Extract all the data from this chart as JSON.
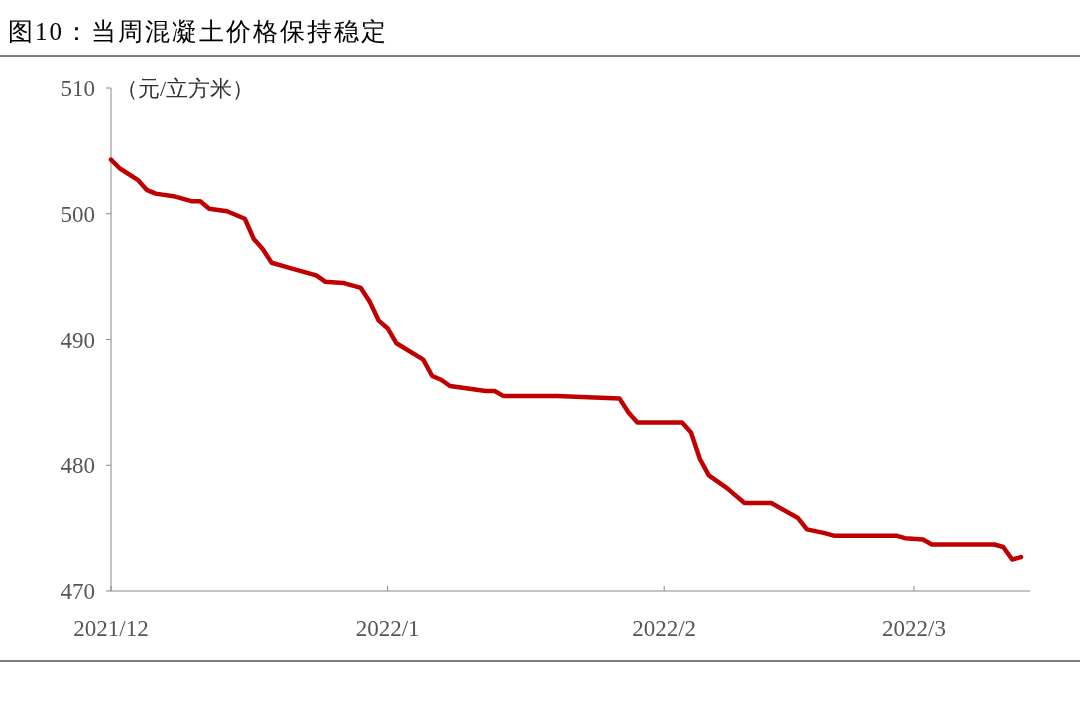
{
  "chart_data": {
    "type": "line",
    "title": "图10：当周混凝土价格保持稳定",
    "ylabel": "（元/立方米）",
    "x": [
      "2021-12-01",
      "2021-12-02",
      "2021-12-04",
      "2021-12-05",
      "2021-12-06",
      "2021-12-08",
      "2021-12-10",
      "2021-12-11",
      "2021-12-12",
      "2021-12-14",
      "2021-12-16",
      "2021-12-17",
      "2021-12-18",
      "2021-12-19",
      "2021-12-21",
      "2021-12-24",
      "2021-12-25",
      "2021-12-27",
      "2021-12-29",
      "2021-12-30",
      "2021-12-31",
      "2022-01-01",
      "2022-01-02",
      "2022-01-05",
      "2022-01-06",
      "2022-01-07",
      "2022-01-08",
      "2022-01-12",
      "2022-01-13",
      "2022-01-14",
      "2022-01-20",
      "2022-01-27",
      "2022-01-28",
      "2022-01-29",
      "2022-02-03",
      "2022-02-04",
      "2022-02-05",
      "2022-02-06",
      "2022-02-08",
      "2022-02-10",
      "2022-02-13",
      "2022-02-16",
      "2022-02-17",
      "2022-02-19",
      "2022-02-20",
      "2022-02-27",
      "2022-02-28",
      "2022-03-02",
      "2022-03-03",
      "2022-03-10",
      "2022-03-11",
      "2022-03-12",
      "2022-03-13"
    ],
    "series": [
      {
        "color": "#c00000",
        "values": [
          504.3,
          503.6,
          502.7,
          501.9,
          501.6,
          501.4,
          501.0,
          501.0,
          500.4,
          500.2,
          499.6,
          498.0,
          497.2,
          496.1,
          495.7,
          495.1,
          494.6,
          494.5,
          494.1,
          493.0,
          491.5,
          490.9,
          489.7,
          488.4,
          487.1,
          486.8,
          486.3,
          485.9,
          485.9,
          485.5,
          485.5,
          485.3,
          484.2,
          483.4,
          483.4,
          482.6,
          480.5,
          479.2,
          478.2,
          477.0,
          477.0,
          475.8,
          474.9,
          474.6,
          474.4,
          474.4,
          474.2,
          474.1,
          473.7,
          473.7,
          473.5,
          472.5,
          472.7
        ]
      }
    ],
    "xlim": [
      "2021-12-01",
      "2022-03-14"
    ],
    "xticks": [
      {
        "value": "2021-12-01",
        "label": "2021/12"
      },
      {
        "value": "2022-01-01",
        "label": "2022/1"
      },
      {
        "value": "2022-02-01",
        "label": "2022/2"
      },
      {
        "value": "2022-03-01",
        "label": "2022/3"
      }
    ],
    "ylim": [
      470,
      510
    ],
    "yticks": [
      470,
      480,
      490,
      500,
      510
    ],
    "grid": false
  }
}
